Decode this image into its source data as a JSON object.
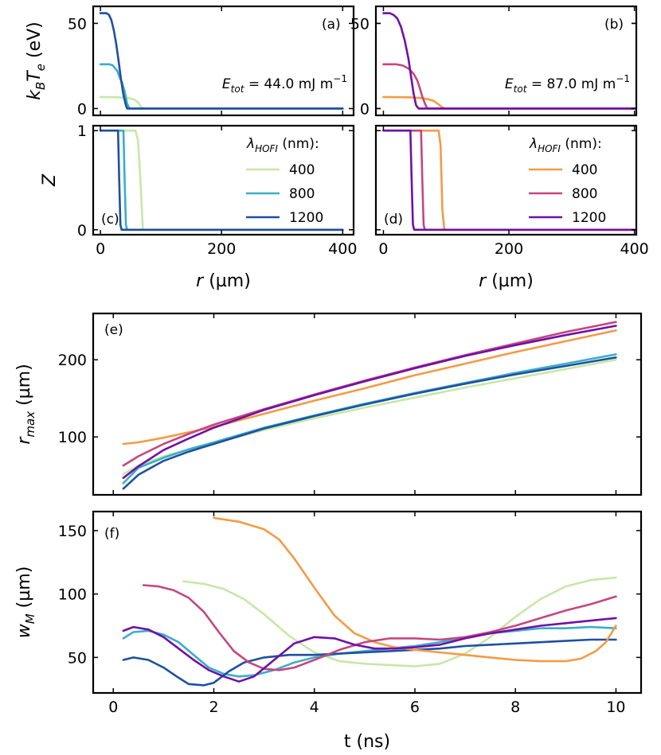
{
  "colors": {
    "400_a": "#c5e8a6",
    "800_a": "#3aaec7",
    "1200_a": "#1e50a0",
    "400_b": "#f59a45",
    "800_b": "#c6467f",
    "1200_b": "#7010a8"
  },
  "chart_data": [
    {
      "type": "line",
      "panel": "a",
      "panel_label": "(a)",
      "title": "",
      "xlabel": "",
      "ylabel": "k_B T_e (eV)",
      "ylabel_main": "k",
      "ylabel_sub1": "B",
      "ylabel_mid": "T",
      "ylabel_sub2": "e",
      "ylabel_unit": " (eV)",
      "annotation": {
        "var": "E",
        "sub": "tot",
        "rest": " = 44.0 mJ m",
        "sup": "−1"
      },
      "xlim": [
        -12,
        418
      ],
      "ylim": [
        -4,
        60
      ],
      "xticks": [
        0,
        200,
        400
      ],
      "yticks": [
        0,
        50
      ],
      "series": [
        {
          "name": "400",
          "color_key": "400_a",
          "x": [
            0,
            30,
            45,
            55,
            62,
            66,
            70,
            75,
            400
          ],
          "y": [
            6.8,
            6.6,
            6.2,
            5.4,
            3.8,
            1.5,
            0.3,
            0,
            0
          ]
        },
        {
          "name": "800",
          "color_key": "800_a",
          "x": [
            0,
            14,
            20,
            28,
            32,
            36,
            40,
            44,
            48,
            400
          ],
          "y": [
            26,
            26,
            25.5,
            22,
            18,
            15,
            10,
            3,
            0,
            0
          ]
        },
        {
          "name": "1200",
          "color_key": "1200_a",
          "x": [
            0,
            10,
            14,
            18,
            22,
            26,
            30,
            34,
            38,
            42,
            44,
            400
          ],
          "y": [
            56,
            56,
            55,
            52,
            46,
            38,
            28,
            17,
            8,
            2,
            0,
            0
          ]
        }
      ]
    },
    {
      "type": "line",
      "panel": "b",
      "panel_label": "(b)",
      "title": "",
      "xlabel": "",
      "ylabel": "",
      "annotation": {
        "var": "E",
        "sub": "tot",
        "rest": " = 87.0 mJ m",
        "sup": "−1"
      },
      "xlim": [
        -12,
        403
      ],
      "ylim": [
        -4,
        60
      ],
      "xticks": [
        0,
        200,
        400
      ],
      "yticks": [
        0,
        50
      ],
      "series": [
        {
          "name": "400",
          "color_key": "400_b",
          "x": [
            0,
            40,
            60,
            70,
            80,
            86,
            92,
            98,
            400
          ],
          "y": [
            6.8,
            6.6,
            6.2,
            5.6,
            4.5,
            3,
            1.2,
            0,
            0
          ]
        },
        {
          "name": "800",
          "color_key": "800_b",
          "x": [
            0,
            20,
            30,
            40,
            48,
            54,
            58,
            62,
            66,
            70,
            400
          ],
          "y": [
            26,
            26,
            25.4,
            23.5,
            20.5,
            16.5,
            12,
            7,
            3,
            0,
            0
          ]
        },
        {
          "name": "1200",
          "color_key": "1200_b",
          "x": [
            0,
            10,
            16,
            22,
            28,
            34,
            40,
            44,
            48,
            52,
            56,
            400
          ],
          "y": [
            56,
            56,
            55,
            53,
            48,
            40,
            29,
            19,
            9,
            2,
            0,
            0
          ]
        }
      ]
    },
    {
      "type": "line",
      "panel": "c",
      "panel_label": "(c)",
      "title": "",
      "xlabel": "r (µm)",
      "xlabel_var": "r",
      "xlabel_unit": " (µm)",
      "ylabel": "Z",
      "legend_title": {
        "var": "λ",
        "sub": "HOFI",
        "rest": " (nm):"
      },
      "legend": [
        "400",
        "800",
        "1200"
      ],
      "xlim": [
        -12,
        418
      ],
      "ylim": [
        -0.05,
        1.05
      ],
      "xticks": [
        0,
        200,
        400
      ],
      "yticks": [
        0,
        1
      ],
      "series": [
        {
          "name": "400",
          "color_key": "400_a",
          "x": [
            0,
            58,
            62,
            66,
            70,
            400
          ],
          "y": [
            1,
            1,
            0.9,
            0.5,
            0,
            0
          ]
        },
        {
          "name": "800",
          "color_key": "800_a",
          "x": [
            0,
            38,
            40,
            42,
            44,
            400
          ],
          "y": [
            1,
            1,
            0.5,
            0.05,
            0,
            0
          ]
        },
        {
          "name": "1200",
          "color_key": "1200_a",
          "x": [
            0,
            29,
            31,
            33,
            35,
            400
          ],
          "y": [
            1,
            1,
            0.5,
            0.05,
            0,
            0
          ]
        }
      ]
    },
    {
      "type": "line",
      "panel": "d",
      "panel_label": "(d)",
      "title": "",
      "xlabel": "r (µm)",
      "xlabel_var": "r",
      "xlabel_unit": " (µm)",
      "ylabel": "",
      "legend_title": {
        "var": "λ",
        "sub": "HOFI",
        "rest": " (nm):"
      },
      "legend": [
        "400",
        "800",
        "1200"
      ],
      "xlim": [
        -12,
        403
      ],
      "ylim": [
        -0.05,
        1.05
      ],
      "xticks": [
        0,
        200,
        400
      ],
      "yticks": [],
      "series": [
        {
          "name": "400",
          "color_key": "400_b",
          "x": [
            0,
            88,
            91,
            94,
            97,
            400
          ],
          "y": [
            1,
            1,
            0.85,
            0.2,
            0,
            0
          ]
        },
        {
          "name": "800",
          "color_key": "800_b",
          "x": [
            0,
            60,
            62,
            64,
            66,
            400
          ],
          "y": [
            1,
            1,
            0.5,
            0.05,
            0,
            0
          ]
        },
        {
          "name": "1200",
          "color_key": "1200_b",
          "x": [
            0,
            43,
            45,
            47,
            49,
            400
          ],
          "y": [
            1,
            1,
            0.5,
            0.05,
            0,
            0
          ]
        }
      ]
    },
    {
      "type": "line",
      "panel": "e",
      "panel_label": "(e)",
      "title": "",
      "xlabel": "",
      "ylabel": "r_max (µm)",
      "ylabel_var": "r",
      "ylabel_sub": "max",
      "ylabel_unit": " (µm)",
      "xlim": [
        -0.4,
        10.5
      ],
      "ylim": [
        25,
        260
      ],
      "xticks": [
        0,
        2,
        4,
        6,
        8,
        10
      ],
      "yticks": [
        100,
        200
      ],
      "series": [
        {
          "name": "400 (a)",
          "color_key": "400_a",
          "x": [
            0.2,
            0.5,
            1,
            1.5,
            2,
            3,
            4,
            5,
            6,
            7,
            8,
            9,
            10
          ],
          "y": [
            52,
            63,
            75,
            84,
            92,
            109,
            124,
            138,
            151,
            164,
            176,
            188,
            200
          ]
        },
        {
          "name": "800 (a)",
          "color_key": "800_a",
          "x": [
            0.2,
            0.5,
            1,
            1.5,
            2,
            3,
            4,
            5,
            6,
            7,
            8,
            9,
            10
          ],
          "y": [
            40,
            60,
            73,
            84,
            93,
            112,
            128,
            143,
            157,
            170,
            183,
            195,
            207
          ]
        },
        {
          "name": "1200 (a)",
          "color_key": "1200_a",
          "x": [
            0.2,
            0.5,
            1,
            1.5,
            2,
            3,
            4,
            5,
            6,
            7,
            8,
            9,
            10
          ],
          "y": [
            33,
            51,
            69,
            81,
            91,
            111,
            127,
            142,
            156,
            169,
            181,
            192,
            203
          ]
        },
        {
          "name": "400 (b)",
          "color_key": "400_b",
          "x": [
            0.2,
            0.5,
            1,
            1.5,
            2,
            3,
            4,
            5,
            6,
            7,
            8,
            9,
            10
          ],
          "y": [
            91,
            93,
            99,
            106,
            113,
            130,
            147,
            163,
            180,
            195,
            210,
            224,
            238
          ]
        },
        {
          "name": "800 (b)",
          "color_key": "800_b",
          "x": [
            0.2,
            0.5,
            1,
            1.5,
            2,
            3,
            4,
            5,
            6,
            7,
            8,
            9,
            10
          ],
          "y": [
            63,
            75,
            91,
            104,
            116,
            136,
            155,
            173,
            190,
            206,
            221,
            236,
            249
          ]
        },
        {
          "name": "1200 (b)",
          "color_key": "1200_b",
          "x": [
            0.2,
            0.5,
            1,
            1.5,
            2,
            3,
            4,
            5,
            6,
            7,
            8,
            9,
            10
          ],
          "y": [
            47,
            62,
            83,
            98,
            112,
            135,
            154,
            172,
            189,
            205,
            219,
            232,
            244
          ]
        }
      ]
    },
    {
      "type": "line",
      "panel": "f",
      "panel_label": "(f)",
      "title": "",
      "xlabel": "t (ns)",
      "ylabel": "w_M (µm)",
      "ylabel_var": "w",
      "ylabel_sub": "M",
      "ylabel_unit": " (µm)",
      "xlim": [
        -0.4,
        10.5
      ],
      "ylim": [
        22,
        165
      ],
      "xticks": [
        0,
        2,
        4,
        6,
        8,
        10
      ],
      "yticks": [
        50,
        100,
        150
      ],
      "series": [
        {
          "name": "400 (a)",
          "color_key": "400_a",
          "x": [
            1.4,
            1.8,
            2.2,
            2.6,
            3,
            3.5,
            4,
            4.5,
            5,
            5.5,
            6,
            6.5,
            7,
            7.5,
            8,
            8.5,
            9,
            9.5,
            10
          ],
          "y": [
            110,
            108,
            104,
            96,
            84,
            67,
            54,
            47,
            45,
            44,
            43,
            45,
            53,
            66,
            82,
            96,
            106,
            111,
            113
          ]
        },
        {
          "name": "800 (a)",
          "color_key": "800_a",
          "x": [
            0.2,
            0.4,
            0.7,
            1,
            1.3,
            1.6,
            1.9,
            2.2,
            2.5,
            2.8,
            3.2,
            3.6,
            4,
            4.5,
            5,
            5.5,
            6,
            6.5,
            7,
            7.5,
            8,
            8.5,
            9,
            9.5,
            10
          ],
          "y": [
            65,
            70,
            71,
            68,
            62,
            52,
            42,
            37,
            35,
            36,
            40,
            46,
            50,
            53,
            55,
            57,
            59,
            62,
            66,
            69,
            71,
            73,
            73,
            74,
            73
          ]
        },
        {
          "name": "1200 (a)",
          "color_key": "1200_a",
          "x": [
            0.2,
            0.4,
            0.7,
            1,
            1.3,
            1.5,
            1.8,
            2,
            2.3,
            2.6,
            3,
            3.5,
            4,
            4.5,
            5,
            5.5,
            6,
            6.5,
            7,
            7.5,
            8,
            8.5,
            9,
            9.5,
            10
          ],
          "y": [
            48,
            50,
            48,
            42,
            34,
            29,
            28,
            30,
            39,
            46,
            50,
            52,
            52,
            53,
            54,
            55,
            56,
            57,
            59,
            60,
            61,
            62,
            63,
            64,
            64
          ]
        },
        {
          "name": "400 (b)",
          "color_key": "400_b",
          "x": [
            2,
            2.5,
            3,
            3.3,
            3.6,
            4,
            4.4,
            4.8,
            5.2,
            5.6,
            6,
            6.5,
            7,
            7.5,
            8,
            8.5,
            9,
            9.3,
            9.6,
            9.8,
            10
          ],
          "y": [
            160,
            157,
            151,
            143,
            128,
            105,
            83,
            69,
            62,
            58,
            56,
            54,
            52,
            50,
            48,
            47,
            47,
            49,
            55,
            62,
            75
          ]
        },
        {
          "name": "800 (b)",
          "color_key": "800_b",
          "x": [
            0.6,
            0.9,
            1.2,
            1.5,
            1.8,
            2.1,
            2.4,
            2.7,
            3,
            3.3,
            3.6,
            4,
            4.5,
            5,
            5.5,
            6,
            6.5,
            7,
            7.5,
            8,
            8.5,
            9,
            9.5,
            10
          ],
          "y": [
            107,
            106,
            103,
            97,
            86,
            70,
            55,
            46,
            41,
            40,
            42,
            48,
            56,
            62,
            65,
            65,
            64,
            66,
            70,
            75,
            81,
            87,
            92,
            98
          ]
        },
        {
          "name": "1200 (b)",
          "color_key": "1200_b",
          "x": [
            0.2,
            0.4,
            0.7,
            1,
            1.3,
            1.6,
            1.9,
            2.2,
            2.5,
            2.8,
            3.2,
            3.6,
            4,
            4.4,
            4.8,
            5.2,
            5.6,
            6,
            6.5,
            7,
            7.5,
            8,
            8.5,
            9,
            9.5,
            10
          ],
          "y": [
            71,
            74,
            72,
            66,
            57,
            48,
            40,
            35,
            31,
            35,
            48,
            61,
            66,
            65,
            60,
            57,
            57,
            58,
            60,
            65,
            69,
            72,
            75,
            77,
            79,
            81
          ]
        }
      ]
    }
  ]
}
